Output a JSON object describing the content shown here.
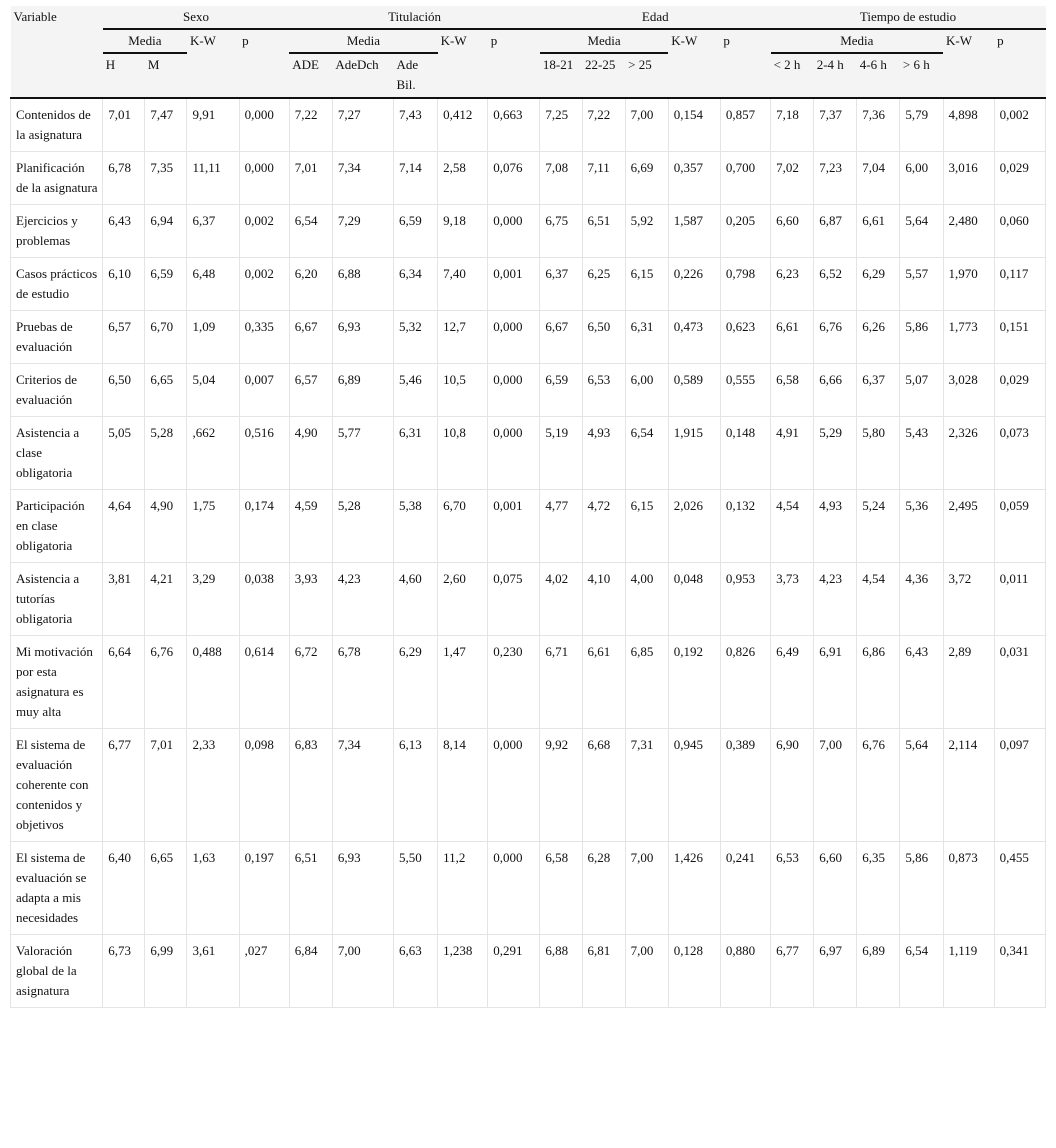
{
  "table": {
    "header": {
      "variable": "Variable",
      "groups": [
        {
          "label": "Sexo",
          "media": "Media",
          "kw": "K-W",
          "p": "p",
          "columns": [
            "H",
            "M"
          ]
        },
        {
          "label": "Titulación",
          "media": "Media",
          "kw": "K-W",
          "p": "p",
          "columns": [
            "ADE",
            "AdeDch",
            "Ade Bil."
          ]
        },
        {
          "label": "Edad",
          "media": "Media",
          "kw": "K-W",
          "p": "p",
          "columns": [
            "18-21",
            "22-25",
            "> 25"
          ]
        },
        {
          "label": "Tiempo de estudio",
          "media": "Media",
          "kw": "K-W",
          "p": "p",
          "columns": [
            "< 2 h",
            "2-4 h",
            "4-6 h",
            "> 6 h"
          ]
        }
      ]
    },
    "rows": [
      {
        "label": "Contenidos de la asignatura",
        "values": [
          "7,01",
          "7,47",
          "9,91",
          "0,000",
          "7,22",
          "7,27",
          "7,43",
          "0,412",
          "0,663",
          "7,25",
          "7,22",
          "7,00",
          "0,154",
          "0,857",
          "7,18",
          "7,37",
          "7,36",
          "5,79",
          "4,898",
          "0,002"
        ]
      },
      {
        "label": "Planificación de la asignatura",
        "values": [
          "6,78",
          "7,35",
          "11,11",
          "0,000",
          "7,01",
          "7,34",
          "7,14",
          "2,58",
          "0,076",
          "7,08",
          "7,11",
          "6,69",
          "0,357",
          "0,700",
          "7,02",
          "7,23",
          "7,04",
          "6,00",
          "3,016",
          "0,029"
        ]
      },
      {
        "label": "Ejercicios y problemas",
        "values": [
          "6,43",
          "6,94",
          "6,37",
          "0,002",
          "6,54",
          "7,29",
          "6,59",
          "9,18",
          "0,000",
          "6,75",
          "6,51",
          "5,92",
          "1,587",
          "0,205",
          "6,60",
          "6,87",
          "6,61",
          "5,64",
          "2,480",
          "0,060"
        ]
      },
      {
        "label": "Casos prácticos de estudio",
        "values": [
          "6,10",
          "6,59",
          "6,48",
          "0,002",
          "6,20",
          "6,88",
          "6,34",
          "7,40",
          "0,001",
          "6,37",
          "6,25",
          "6,15",
          "0,226",
          "0,798",
          "6,23",
          "6,52",
          "6,29",
          "5,57",
          "1,970",
          "0,117"
        ]
      },
      {
        "label": "Pruebas de evaluación",
        "values": [
          "6,57",
          "6,70",
          "1,09",
          "0,335",
          "6,67",
          "6,93",
          "5,32",
          "12,7",
          "0,000",
          "6,67",
          "6,50",
          "6,31",
          "0,473",
          "0,623",
          "6,61",
          "6,76",
          "6,26",
          "5,86",
          "1,773",
          "0,151"
        ]
      },
      {
        "label": "Criterios de evaluación",
        "values": [
          "6,50",
          "6,65",
          "5,04",
          "0,007",
          "6,57",
          "6,89",
          "5,46",
          "10,5",
          "0,000",
          "6,59",
          "6,53",
          "6,00",
          "0,589",
          "0,555",
          "6,58",
          "6,66",
          "6,37",
          "5,07",
          "3,028",
          "0,029"
        ]
      },
      {
        "label": "Asistencia a clase obligatoria",
        "values": [
          "5,05",
          "5,28",
          ",662",
          "0,516",
          "4,90",
          "5,77",
          "6,31",
          "10,8",
          "0,000",
          "5,19",
          "4,93",
          "6,54",
          "1,915",
          "0,148",
          "4,91",
          "5,29",
          "5,80",
          "5,43",
          "2,326",
          "0,073"
        ]
      },
      {
        "label": "Participación en clase obligatoria",
        "values": [
          "4,64",
          "4,90",
          "1,75",
          "0,174",
          "4,59",
          "5,28",
          "5,38",
          "6,70",
          "0,001",
          "4,77",
          "4,72",
          "6,15",
          "2,026",
          "0,132",
          "4,54",
          "4,93",
          "5,24",
          "5,36",
          "2,495",
          "0,059"
        ]
      },
      {
        "label": "Asistencia a tutorías obligatoria",
        "values": [
          "3,81",
          "4,21",
          "3,29",
          "0,038",
          "3,93",
          "4,23",
          "4,60",
          "2,60",
          "0,075",
          "4,02",
          "4,10",
          "4,00",
          "0,048",
          "0,953",
          "3,73",
          "4,23",
          "4,54",
          "4,36",
          "3,72",
          "0,011"
        ]
      },
      {
        "label": "Mi motivación por esta asignatura es muy alta",
        "values": [
          "6,64",
          "6,76",
          "0,488",
          "0,614",
          "6,72",
          "6,78",
          "6,29",
          "1,47",
          "0,230",
          "6,71",
          "6,61",
          "6,85",
          "0,192",
          "0,826",
          "6,49",
          "6,91",
          "6,86",
          "6,43",
          "2,89",
          "0,031"
        ]
      },
      {
        "label": "El sistema de evaluación coherente con contenidos y objetivos",
        "values": [
          "6,77",
          "7,01",
          "2,33",
          "0,098",
          "6,83",
          "7,34",
          "6,13",
          "8,14",
          "0,000",
          "9,92",
          "6,68",
          "7,31",
          "0,945",
          "0,389",
          "6,90",
          "7,00",
          "6,76",
          "5,64",
          "2,114",
          "0,097"
        ]
      },
      {
        "label": "El sistema de evaluación se adapta a mis necesidades",
        "values": [
          "6,40",
          "6,65",
          "1,63",
          "0,197",
          "6,51",
          "6,93",
          "5,50",
          "11,2",
          "0,000",
          "6,58",
          "6,28",
          "7,00",
          "1,426",
          "0,241",
          "6,53",
          "6,60",
          "6,35",
          "5,86",
          "0,873",
          "0,455"
        ]
      },
      {
        "label": "Valoración global de la asignatura",
        "values": [
          "6,73",
          "6,99",
          "3,61",
          ",027",
          "6,84",
          "7,00",
          "6,63",
          "1,238",
          "0,291",
          "6,88",
          "6,81",
          "7,00",
          "0,128",
          "0,880",
          "6,77",
          "6,97",
          "6,89",
          "6,54",
          "1,119",
          "0,341"
        ]
      }
    ]
  }
}
